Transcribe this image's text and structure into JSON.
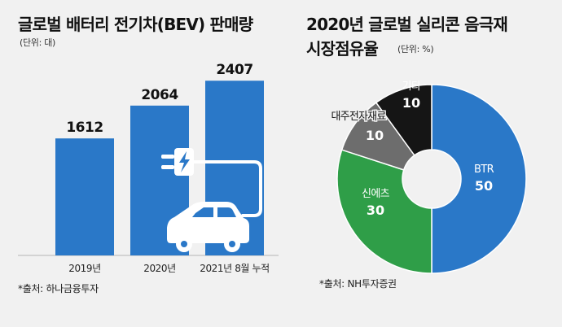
{
  "chart_data": [
    {
      "type": "bar",
      "title": "글로벌 배터리 전기차(BEV) 판매량",
      "subtitle": "(단위: 대)",
      "categories": [
        "2019년",
        "2020년",
        "2021년 8월 누적"
      ],
      "values": [
        1612,
        2064,
        2407
      ],
      "value_labels": [
        "1612",
        "2064",
        "2407"
      ],
      "ylim": [
        0,
        2600
      ],
      "grid": false,
      "colors": {
        "bar": "#2a78c8",
        "axis": "#b5b5b5",
        "icon": "#ffffff"
      },
      "source": "*출처: 하나금융투자"
    },
    {
      "type": "pie",
      "title_line1": "2020년 글로벌 실리콘 음극재",
      "title_line2": "시장점유율",
      "subtitle": "(단위: %)",
      "labels": [
        "BTR",
        "신에츠",
        "대주전자재료",
        "기타"
      ],
      "values": [
        50,
        30,
        10,
        10
      ],
      "value_labels": [
        "50",
        "30",
        "10",
        "10"
      ],
      "colors": [
        "#2a78c8",
        "#2f9e48",
        "#6d6d6d",
        "#151515"
      ],
      "donut": true,
      "source": "*출처: NH투자증권"
    }
  ]
}
